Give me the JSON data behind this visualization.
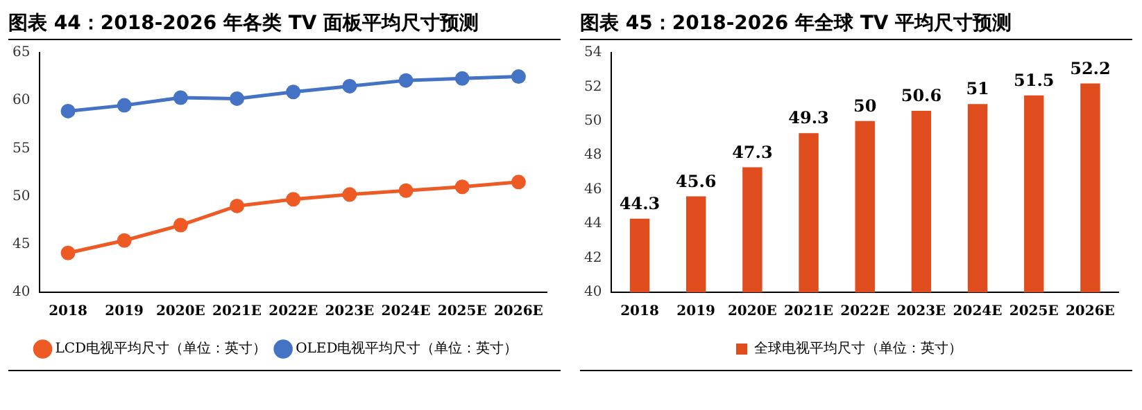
{
  "chart_data": [
    {
      "type": "line",
      "title": "图表 44：2018-2026 年各类 TV 面板平均尺寸预测",
      "categories": [
        "2018",
        "2019",
        "2020E",
        "2021E",
        "2022E",
        "2023E",
        "2024E",
        "2025E",
        "2026E"
      ],
      "series": [
        {
          "name": "LCD电视平均尺寸（单位：英寸）",
          "color": "#ed5a24",
          "values": [
            44.1,
            45.4,
            47.0,
            49.0,
            49.7,
            50.2,
            50.6,
            51.0,
            51.5
          ]
        },
        {
          "name": "OLED电视平均尺寸（单位：英寸）",
          "color": "#4472c4",
          "values": [
            58.9,
            59.5,
            60.3,
            60.2,
            60.9,
            61.5,
            62.1,
            62.3,
            62.5
          ]
        }
      ],
      "ylim": [
        40,
        65
      ],
      "yticks": [
        40,
        45,
        50,
        55,
        60,
        65
      ],
      "grid": false,
      "legend": "bottom",
      "marker": "circle"
    },
    {
      "type": "bar",
      "title": "图表 45：2018-2026 年全球 TV 平均尺寸预测",
      "categories": [
        "2018",
        "2019",
        "2020E",
        "2021E",
        "2022E",
        "2023E",
        "2024E",
        "2025E",
        "2026E"
      ],
      "series": [
        {
          "name": "全球电视平均尺寸（单位：英寸）",
          "color": "#df4d1e",
          "values": [
            44.3,
            45.6,
            47.3,
            49.3,
            50,
            50.6,
            51,
            51.5,
            52.2
          ]
        }
      ],
      "ylim": [
        40,
        54
      ],
      "yticks": [
        40,
        42,
        44,
        46,
        48,
        50,
        52,
        54
      ],
      "grid": false,
      "legend": "bottom",
      "data_labels": true
    }
  ]
}
